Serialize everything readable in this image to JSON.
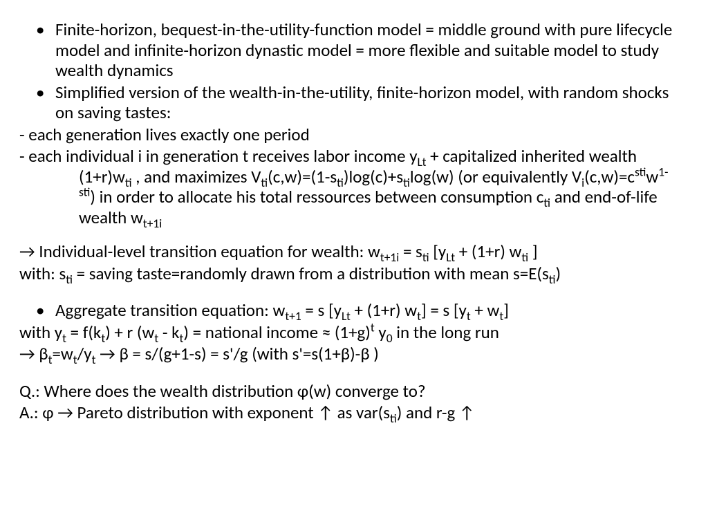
{
  "bullets": {
    "b1": "Finite-horizon, bequest-in-the-utility-function model = middle ground with pure lifecycle model and infinite-horizon dynastic model = more flexible and suitable model to study wealth dynamics",
    "b2": "Simplified version of the wealth-in-the-utility, finite-horizon model, with random shocks on saving tastes:",
    "b3a": "Aggregate transition equation: w",
    "b3b": " = s [y",
    "b3c": " + (1+r) w",
    "b3d": "] = s [y",
    "b3e": " + w",
    "b3f": "]"
  },
  "dash": {
    "d1": "- each generation lives exactly one period",
    "d2a": "- each individual i in generation t receives labor income y",
    "d2b": " + capitalized inherited wealth (1+r)w",
    "d2c": " , and maximizes V",
    "d2d": "(c,w)=(1-s",
    "d2e": ")log(c)+s",
    "d2f": "log(w) (or equivalently V",
    "d2g": "(c,w)=c",
    "d2h": "w",
    "d2i": ") in order to allocate his total ressources between consumption c",
    "d2j": " and end-of-life wealth w"
  },
  "arrow": {
    "a1a": "→ Individual-level transition equation for wealth: w",
    "a1b": " = s",
    "a1c": " [y",
    "a1d": " + (1+r) w",
    "a1e": " ]",
    "a2a": "with: s",
    "a2b": " = saving taste=randomly drawn from a distribution with mean s=E(s",
    "a2c": ")",
    "a3a": "with y",
    "a3b": " = f(k",
    "a3c": ") + r (w",
    "a3d": " - k",
    "a3e": ") = national income ≈ (1+g)",
    "a3f": " y",
    "a3g": " in the long run",
    "a4a": "→ β",
    "a4b": "=w",
    "a4c": "/y",
    "a4d": " → β = s/(g+1-s) = s'/g  (with s'=s(1+β)-β )"
  },
  "qa": {
    "q": "Q.: Where does the wealth distribution φ(w) converge to?",
    "aa": "A.: φ → Pareto distribution with exponent ↑ as var(s",
    "ab": ") and r-g ↑"
  },
  "sub": {
    "Lt": "Lt",
    "ti": "ti",
    "i": "i",
    "t": "t",
    "t1": "t+1",
    "t1i": "t+1i",
    "zero": "0"
  },
  "sup": {
    "sti": "sti",
    "onemsti": "1-sti",
    "t": "t"
  }
}
